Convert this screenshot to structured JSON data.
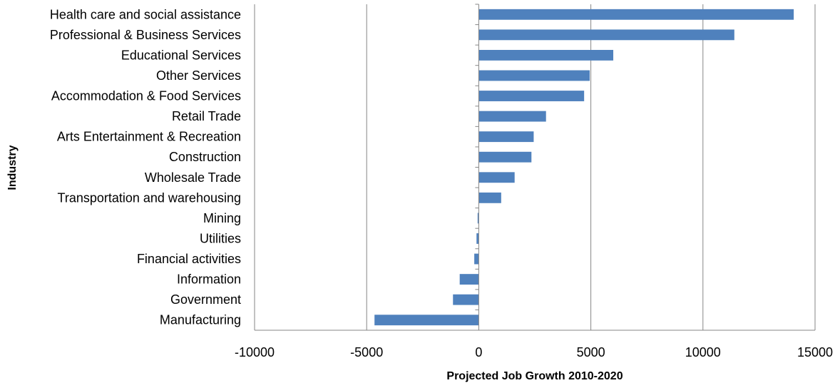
{
  "chart_data": {
    "type": "bar",
    "orientation": "horizontal",
    "categories": [
      "Health care and social assistance",
      "Professional & Business Services",
      "Educational Services",
      "Other Services",
      "Accommodation & Food Services",
      "Retail Trade",
      "Arts Entertainment & Recreation",
      "Construction",
      "Wholesale Trade",
      "Transportation and warehousing",
      "Mining",
      "Utilities",
      "Financial activities",
      "Information",
      "Government",
      "Manufacturing"
    ],
    "values": [
      14050,
      11400,
      6000,
      4950,
      4700,
      3000,
      2450,
      2350,
      1600,
      1000,
      -50,
      -100,
      -200,
      -850,
      -1150,
      -4650
    ],
    "xlabel": "Projected Job Growth 2010-2020",
    "ylabel": "Industry",
    "xlim": [
      -10000,
      15000
    ],
    "xticks": [
      "-10000",
      "-5000",
      "0",
      "5000",
      "10000",
      "15000"
    ],
    "grid": "vertical",
    "legend": "none",
    "bar_color": "#4F81BD",
    "grid_color": "#868686"
  }
}
